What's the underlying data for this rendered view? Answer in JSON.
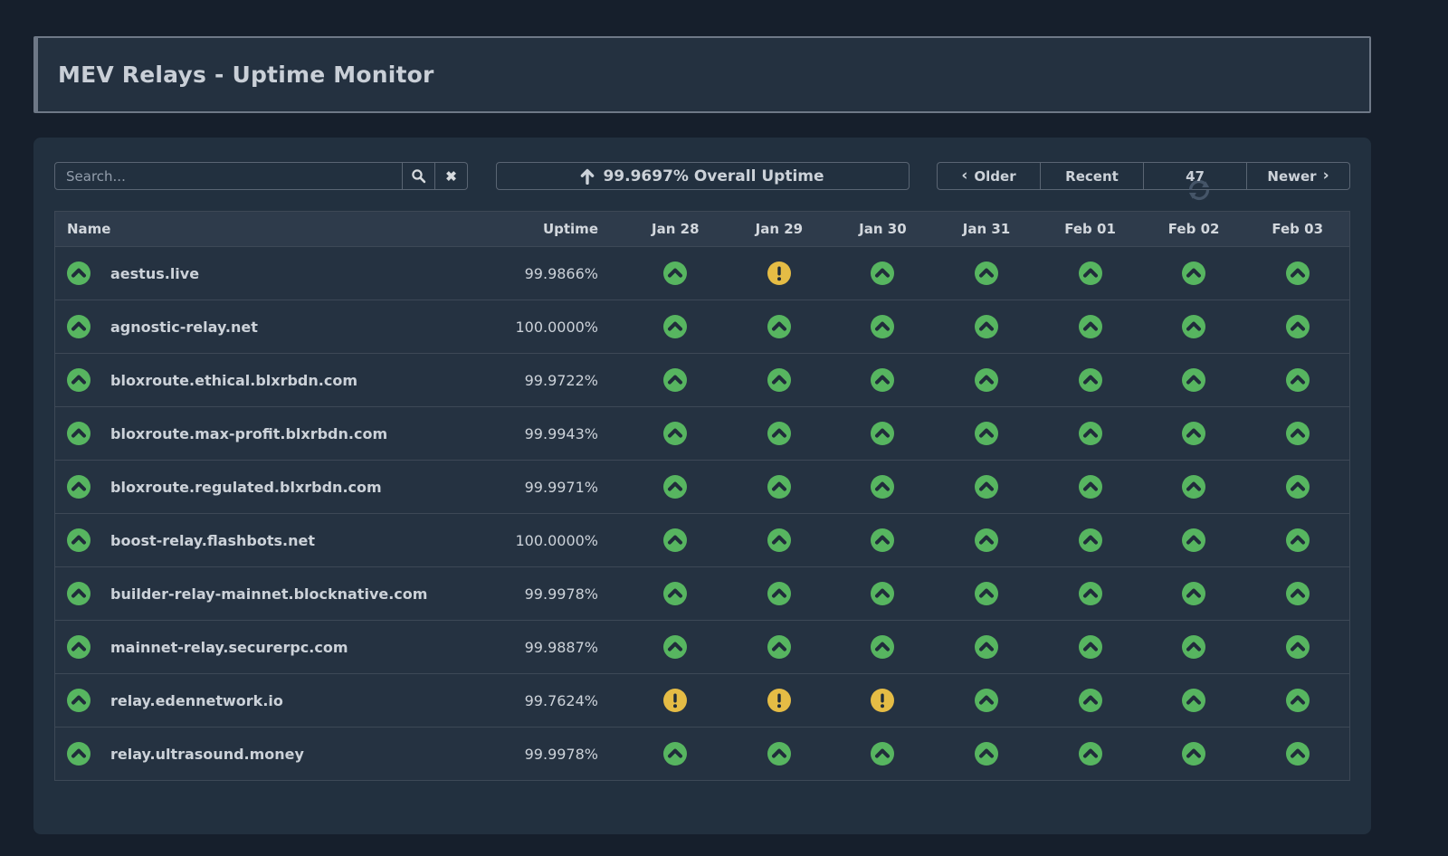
{
  "header": {
    "title": "MEV Relays - Uptime Monitor"
  },
  "controls": {
    "search": {
      "placeholder": "Search...",
      "search_icon": "magnifier-icon",
      "clear_icon": "x-icon"
    },
    "overall_uptime": {
      "icon": "arrow-up-icon",
      "label": "99.9697% Overall Uptime"
    },
    "pager": {
      "older_label": "Older",
      "older_chevron": "‹",
      "recent_label": "Recent",
      "refresh_icon": "refresh-icon",
      "refresh_countdown": "47",
      "newer_label": "Newer",
      "newer_chevron": "›"
    }
  },
  "table": {
    "columns": [
      "Name",
      "Uptime",
      "Jan 28",
      "Jan 29",
      "Jan 30",
      "Jan 31",
      "Feb 01",
      "Feb 02",
      "Feb 03"
    ],
    "rows": [
      {
        "name": "aestus.live",
        "uptime": "99.9866%",
        "status_icon": "up",
        "days": [
          "up",
          "warning",
          "up",
          "up",
          "up",
          "up",
          "up"
        ]
      },
      {
        "name": "agnostic-relay.net",
        "uptime": "100.0000%",
        "status_icon": "up",
        "days": [
          "up",
          "up",
          "up",
          "up",
          "up",
          "up",
          "up"
        ]
      },
      {
        "name": "bloxroute.ethical.blxrbdn.com",
        "uptime": "99.9722%",
        "status_icon": "up",
        "days": [
          "up",
          "up",
          "up",
          "up",
          "up",
          "up",
          "up"
        ]
      },
      {
        "name": "bloxroute.max-profit.blxrbdn.com",
        "uptime": "99.9943%",
        "status_icon": "up",
        "days": [
          "up",
          "up",
          "up",
          "up",
          "up",
          "up",
          "up"
        ]
      },
      {
        "name": "bloxroute.regulated.blxrbdn.com",
        "uptime": "99.9971%",
        "status_icon": "up",
        "days": [
          "up",
          "up",
          "up",
          "up",
          "up",
          "up",
          "up"
        ]
      },
      {
        "name": "boost-relay.flashbots.net",
        "uptime": "100.0000%",
        "status_icon": "up",
        "days": [
          "up",
          "up",
          "up",
          "up",
          "up",
          "up",
          "up"
        ]
      },
      {
        "name": "builder-relay-mainnet.blocknative.com",
        "uptime": "99.9978%",
        "status_icon": "up",
        "days": [
          "up",
          "up",
          "up",
          "up",
          "up",
          "up",
          "up"
        ]
      },
      {
        "name": "mainnet-relay.securerpc.com",
        "uptime": "99.9887%",
        "status_icon": "up",
        "days": [
          "up",
          "up",
          "up",
          "up",
          "up",
          "up",
          "up"
        ]
      },
      {
        "name": "relay.edennetwork.io",
        "uptime": "99.7624%",
        "status_icon": "up",
        "days": [
          "warning",
          "warning",
          "warning",
          "up",
          "up",
          "up",
          "up"
        ]
      },
      {
        "name": "relay.ultrasound.money",
        "uptime": "99.9978%",
        "status_icon": "up",
        "days": [
          "up",
          "up",
          "up",
          "up",
          "up",
          "up",
          "up"
        ]
      }
    ]
  },
  "colors": {
    "status_up": "#57b560",
    "status_warning": "#e5bc45",
    "page_background": "#161f2c",
    "panel_background": "#22303f",
    "row_background": "#253241",
    "header_row_background": "#2e3b4b",
    "text": "#ccd2d9"
  }
}
